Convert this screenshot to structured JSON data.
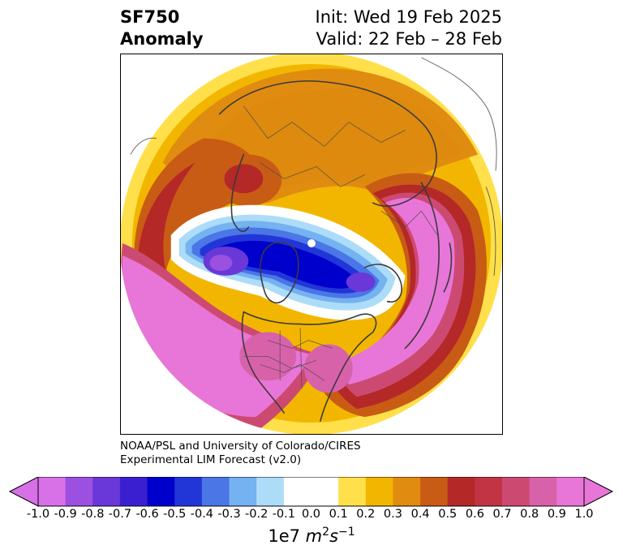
{
  "header": {
    "title_line1": "SF750",
    "title_line2": "Anomaly",
    "init_line": "Init: Wed 19 Feb 2025",
    "valid_line": "Valid: 22 Feb – 28 Feb"
  },
  "credit": {
    "line1": "NOAA/PSL and University of Colorado/CIRES",
    "line2": "Experimental LIM Forecast (v2.0)"
  },
  "colorbar": {
    "ticks": [
      "-1.0",
      "-0.9",
      "-0.8",
      "-0.7",
      "-0.6",
      "-0.5",
      "-0.4",
      "-0.3",
      "-0.2",
      "-0.1",
      "0.0",
      "0.1",
      "0.2",
      "0.3",
      "0.4",
      "0.5",
      "0.6",
      "0.7",
      "0.8",
      "0.9",
      "1.0"
    ],
    "colors": [
      "#d870e8",
      "#9b50e0",
      "#6a38d8",
      "#3a1fd0",
      "#0000cc",
      "#2236d8",
      "#4a76e6",
      "#74b2f2",
      "#acdcf8",
      "#ffffff",
      "#ffffff",
      "#ffe04a",
      "#f2b600",
      "#e08c10",
      "#c85c14",
      "#b42828",
      "#c23444",
      "#cc4a72",
      "#d862aa",
      "#e876d8"
    ],
    "units_base": "1e7",
    "units_m": "m",
    "units_m_exp": "2",
    "units_s": "s",
    "units_s_exp": "−1"
  }
}
